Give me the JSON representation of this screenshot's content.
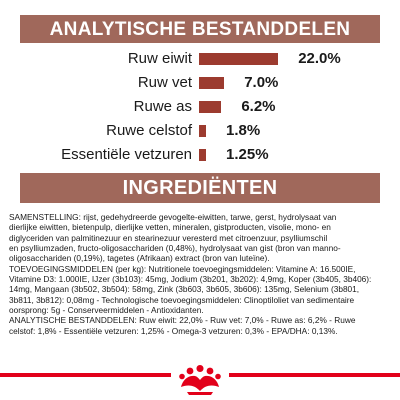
{
  "nutrients": {
    "title": "ANALYTISCHE BESTANDDELEN",
    "items": [
      {
        "label": "Ruw eiwit",
        "value": "22.0%",
        "percent": 22.0
      },
      {
        "label": "Ruw vet",
        "value": "7.0%",
        "percent": 7.0
      },
      {
        "label": "Ruwe as",
        "value": "6.2%",
        "percent": 6.2
      },
      {
        "label": "Ruwe celstof",
        "value": "1.8%",
        "percent": 1.8
      },
      {
        "label": "Essentiële vetzuren",
        "value": "1.25%",
        "percent": 1.25
      }
    ]
  },
  "ingredients": {
    "title": "INGREDIËNTEN",
    "lines": [
      "SAMENSTELLING: rijst, gedehydreerde gevogelte-eiwitten, tarwe, gerst, hydrolysaat van",
      "dierlijke eiwitten, bietenpulp, dierlijke vetten, mineralen, gistproducten, visolie, mono- en",
      "diglyceriden van palmitinezuur en stearinezuur veresterd met citroenzuur, psylliumschil",
      "en psylliumzaden, fructo-oligosacchariden (0,48%), hydrolysaat van gist (bron van manno-",
      "oligosacchariden (0,19%), tagetes (Afrikaan) extract (bron van luteïne).",
      "TOEVOEGINGSMIDDELEN (per kg): Nutritionele toevoegingsmiddelen: Vitamine A: 16.500IE,",
      "Vitamine D3: 1.000IE, IJzer (3b103): 45mg, Jodium (3b201, 3b202): 4,9mg, Koper (3b405, 3b406):",
      "14mg, Mangaan (3b502, 3b504): 58mg, Zink (3b603, 3b605, 3b606): 135mg, Selenium (3b801,",
      "3b811, 3b812): 0,08mg - Technologische toevoegingsmiddelen: Clinoptiloliet van sedimentaire",
      "oorsprong: 5g - Conserveermiddelen - Antioxidanten.",
      "ANALYTISCHE BESTANDDELEN: Ruw eiwit: 22,0% - Ruw vet: 7,0% - Ruwe as: 6,2% - Ruwe",
      "celstof: 1,8% - Essentiële vetzuren: 1,25% - Omega-3 vetzuren: 0,3% - EPA/DHA: 0,13%."
    ]
  },
  "colors": {
    "banner": "#a0685b",
    "bar": "#9c3b2f",
    "brand_red": "#e2001a"
  },
  "logo": {
    "icon": "royal-canin-crown-logo"
  }
}
